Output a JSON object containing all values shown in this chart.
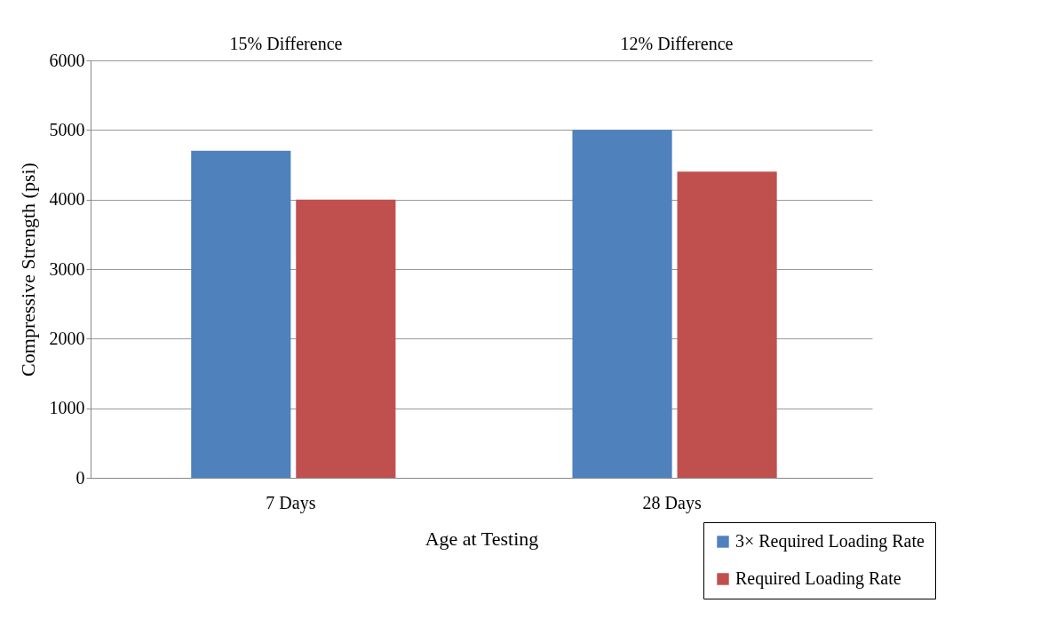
{
  "chart_data": {
    "type": "bar",
    "xlabel": "Age at Testing",
    "ylabel": "Compressive Strength (psi)",
    "categories": [
      "7 Days",
      "28 Days"
    ],
    "series": [
      {
        "name": "3× Required Loading Rate",
        "color": "#4f81bd",
        "values": [
          4700,
          5000
        ]
      },
      {
        "name": "Required Loading Rate",
        "color": "#c0504d",
        "values": [
          4000,
          4400
        ]
      }
    ],
    "ylim": [
      0,
      6000
    ],
    "yticks": [
      0,
      1000,
      2000,
      3000,
      4000,
      5000,
      6000
    ],
    "grid": "y",
    "legend": "bottom right",
    "annotations": [
      "15% Difference",
      "12% Difference"
    ]
  }
}
